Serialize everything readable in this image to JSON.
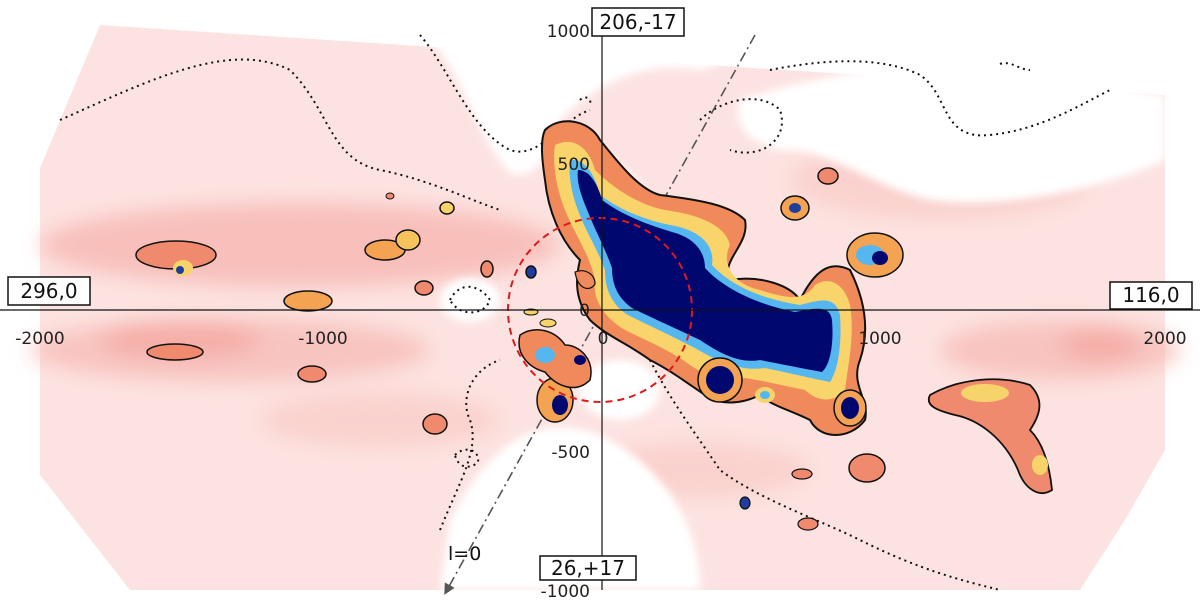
{
  "map": {
    "axes": {
      "x_ticks": [
        "-2000",
        "-1000",
        "0",
        "1000",
        "2000"
      ],
      "y_ticks": [
        "1000",
        "500",
        "0",
        "-500",
        "-1000"
      ]
    },
    "direction_labels": {
      "top": "206,-17",
      "bottom": "26,+17",
      "left": "296,0",
      "right": "116,0"
    },
    "line_label": "l=0",
    "colors": {
      "background": "#ffffff",
      "low_density": "#fce3e1",
      "mid_density": "#f7aaa4",
      "orange": "#f29a4b",
      "yellow": "#f8e68e",
      "cyan": "#55b6f0",
      "deep_blue": "#000870",
      "circle": "#e0191b"
    }
  }
}
